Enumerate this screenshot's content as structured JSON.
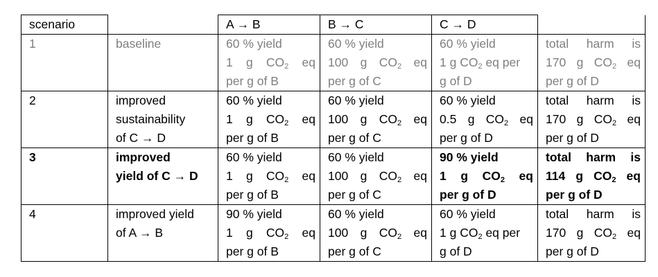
{
  "table": {
    "header": {
      "col0": "scenario",
      "col1": "",
      "col2": "A → B",
      "col3": "B → C",
      "col4": "C → D",
      "col5": ""
    },
    "rows": [
      {
        "scenario": "1",
        "description": [
          "baseline"
        ],
        "ab": {
          "yield": "60 % yield",
          "harm_a": "1",
          "harm_b": "g",
          "harm_c": "CO",
          "harm_d": "eq",
          "per": "per g of B"
        },
        "bc": {
          "yield": "60 % yield",
          "harm_a": "100",
          "harm_b": "g",
          "harm_c": "CO",
          "harm_d": "eq",
          "per": "per g of C"
        },
        "cd": {
          "yield": "60 % yield",
          "line2": "1 g CO",
          "line2b": " eq per",
          "line3": "g of D"
        },
        "total": {
          "w1": "total",
          "w2": "harm",
          "w3": "is",
          "v1": "170",
          "v2": "g",
          "v3": "CO",
          "v4": "eq",
          "per": "per g of D"
        }
      },
      {
        "scenario": "2",
        "description": [
          "improved",
          "sustainability",
          "of C → D"
        ],
        "ab": {
          "yield": "60 % yield",
          "harm_a": "1",
          "harm_b": "g",
          "harm_c": "CO",
          "harm_d": "eq",
          "per": "per g of B"
        },
        "bc": {
          "yield": "60 % yield",
          "harm_a": "100",
          "harm_b": "g",
          "harm_c": "CO",
          "harm_d": "eq",
          "per": "per g of C"
        },
        "cd": {
          "yield": "60 % yield",
          "harm_a": "0.5",
          "harm_b": "g",
          "harm_c": "CO",
          "harm_d": "eq",
          "per": "per g of D"
        },
        "total": {
          "w1": "total",
          "w2": "harm",
          "w3": "is",
          "v1": "170",
          "v2": "g",
          "v3": "CO",
          "v4": "eq",
          "per": "per g of D"
        }
      },
      {
        "scenario": "3",
        "description": [
          "improved",
          "yield of C → D"
        ],
        "ab": {
          "yield": "60 % yield",
          "harm_a": "1",
          "harm_b": "g",
          "harm_c": "CO",
          "harm_d": "eq",
          "per": "per g of B"
        },
        "bc": {
          "yield": "60 % yield",
          "harm_a": "100",
          "harm_b": "g",
          "harm_c": "CO",
          "harm_d": "eq",
          "per": "per g of C"
        },
        "cd": {
          "yield": "90 % yield",
          "harm_a": "1",
          "harm_b": "g",
          "harm_c": "CO",
          "harm_d": "eq",
          "per": "per g of D"
        },
        "total": {
          "w1": "total",
          "w2": "harm",
          "w3": "is",
          "v1": "114",
          "v2": "g",
          "v3": "CO",
          "v4": "eq",
          "per": "per g of D"
        }
      },
      {
        "scenario": "4",
        "description": [
          "improved yield",
          "of A → B"
        ],
        "ab": {
          "yield": "90 % yield",
          "harm_a": "1",
          "harm_b": "g",
          "harm_c": "CO",
          "harm_d": "eq",
          "per": "per g of B"
        },
        "bc": {
          "yield": "60 % yield",
          "harm_a": "100",
          "harm_b": "g",
          "harm_c": "CO",
          "harm_d": "eq",
          "per": "per g of C"
        },
        "cd": {
          "yield": "60 % yield",
          "line2": "1 g CO",
          "line2b": " eq per",
          "line3": "g of D"
        },
        "total": {
          "w1": "total",
          "w2": "harm",
          "w3": "is",
          "v1": "170",
          "v2": "g",
          "v3": "CO",
          "v4": "eq",
          "per": "per g of D"
        }
      }
    ],
    "subscript": "2"
  }
}
